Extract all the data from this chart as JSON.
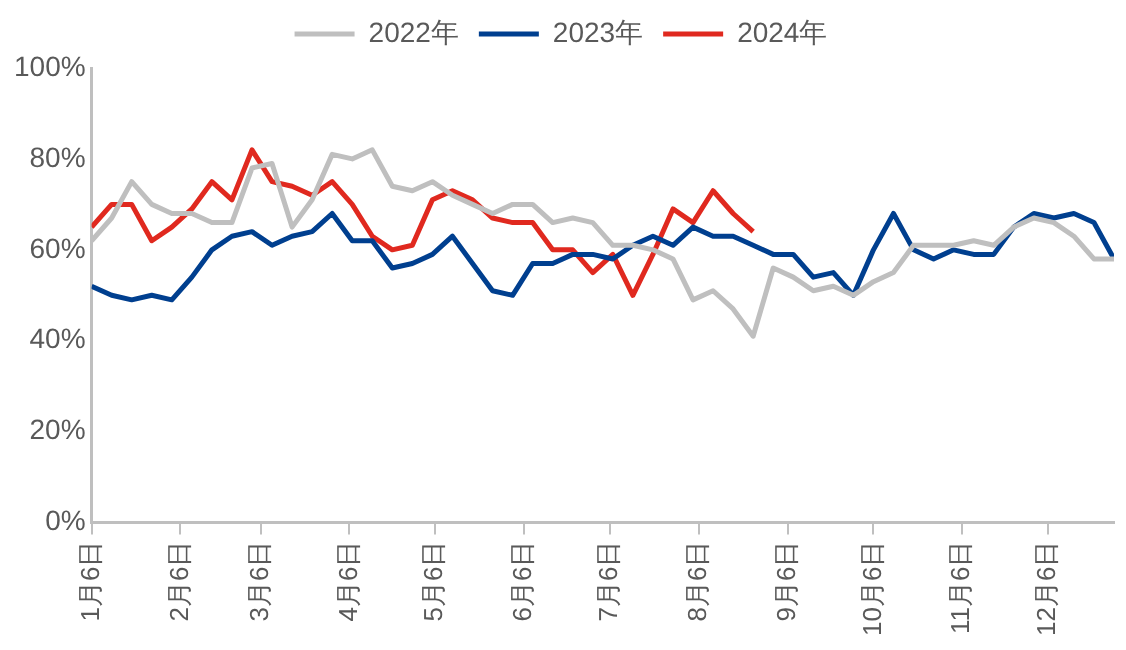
{
  "chart_data": {
    "type": "line",
    "x": [
      "--01-06",
      "--01-13",
      "--01-20",
      "--01-27",
      "--02-03",
      "--02-10",
      "--02-17",
      "--02-24",
      "--03-03",
      "--03-10",
      "--03-17",
      "--03-24",
      "--03-31",
      "--04-07",
      "--04-14",
      "--04-21",
      "--04-28",
      "--05-05",
      "--05-12",
      "--05-19",
      "--05-26",
      "--06-02",
      "--06-09",
      "--06-16",
      "--06-23",
      "--06-30",
      "--07-07",
      "--07-14",
      "--07-21",
      "--07-28",
      "--08-04",
      "--08-11",
      "--08-18",
      "--08-25",
      "--09-01",
      "--09-08",
      "--09-15",
      "--09-22",
      "--09-29",
      "--10-06",
      "--10-13",
      "--10-20",
      "--10-27",
      "--11-03",
      "--11-10",
      "--11-17",
      "--11-24",
      "--12-01",
      "--12-08",
      "--12-15",
      "--12-22",
      "--12-29"
    ],
    "series": [
      {
        "name": "2022年",
        "color": "#bfbfbf",
        "values": [
          62,
          67,
          75,
          70,
          68,
          68,
          66,
          66,
          78,
          79,
          65,
          71,
          81,
          80,
          82,
          74,
          73,
          75,
          72,
          70,
          68,
          70,
          70,
          66,
          67,
          66,
          61,
          61,
          60,
          58,
          49,
          51,
          47,
          41,
          56,
          54,
          51,
          52,
          50,
          53,
          55,
          61,
          61,
          61,
          62,
          61,
          65,
          67,
          66,
          63,
          58,
          58
        ]
      },
      {
        "name": "2023年",
        "color": "#003f8f",
        "values": [
          52,
          50,
          49,
          50,
          49,
          54,
          60,
          63,
          64,
          61,
          63,
          64,
          68,
          62,
          62,
          56,
          57,
          59,
          63,
          57,
          51,
          50,
          57,
          57,
          59,
          59,
          58,
          61,
          63,
          61,
          65,
          63,
          63,
          61,
          59,
          59,
          54,
          55,
          50,
          60,
          68,
          60,
          58,
          60,
          59,
          59,
          65,
          68,
          67,
          68,
          66,
          58
        ]
      },
      {
        "name": "2024年",
        "color": "#e0291f",
        "x": [
          "--01-06",
          "--01-13",
          "--01-20",
          "--01-27",
          "--02-03",
          "--02-10",
          "--02-17",
          "--02-24",
          "--03-03",
          "--03-10",
          "--03-17",
          "--03-24",
          "--03-31",
          "--04-07",
          "--04-14",
          "--04-21",
          "--04-28",
          "--05-05",
          "--05-12",
          "--05-19",
          "--05-26",
          "--06-02",
          "--06-09",
          "--06-16",
          "--06-23",
          "--06-30",
          "--07-07",
          "--07-14",
          "--07-21",
          "--07-28",
          "--08-04",
          "--08-11",
          "--08-18",
          "--08-25"
        ],
        "values": [
          65,
          70,
          70,
          62,
          65,
          69,
          75,
          71,
          82,
          75,
          74,
          72,
          75,
          70,
          63,
          60,
          61,
          71,
          73,
          71,
          67,
          66,
          66,
          60,
          60,
          55,
          59,
          50,
          59,
          69,
          66,
          73,
          68,
          64
        ]
      }
    ],
    "xlim": [
      "--01-06",
      "--12-29"
    ],
    "xticks": [
      {
        "value": "--01-06",
        "label": "1月6日"
      },
      {
        "value": "--02-06",
        "label": "2月6日"
      },
      {
        "value": "--03-06",
        "label": "3月6日"
      },
      {
        "value": "--04-06",
        "label": "4月6日"
      },
      {
        "value": "--05-06",
        "label": "5月6日"
      },
      {
        "value": "--06-06",
        "label": "6月6日"
      },
      {
        "value": "--07-06",
        "label": "7月6日"
      },
      {
        "value": "--08-06",
        "label": "8月6日"
      },
      {
        "value": "--09-06",
        "label": "9月6日"
      },
      {
        "value": "--10-06",
        "label": "10月6日"
      },
      {
        "value": "--11-06",
        "label": "11月6日"
      },
      {
        "value": "--12-06",
        "label": "12月6日"
      }
    ],
    "ylim": [
      0,
      100
    ],
    "yticks": [
      {
        "value": 0,
        "label": "0%"
      },
      {
        "value": 20,
        "label": "20%"
      },
      {
        "value": 40,
        "label": "40%"
      },
      {
        "value": 60,
        "label": "60%"
      },
      {
        "value": 80,
        "label": "80%"
      },
      {
        "value": 100,
        "label": "100%"
      }
    ],
    "legend": "top",
    "grid": false,
    "marker": "none",
    "line_style": "solid"
  }
}
